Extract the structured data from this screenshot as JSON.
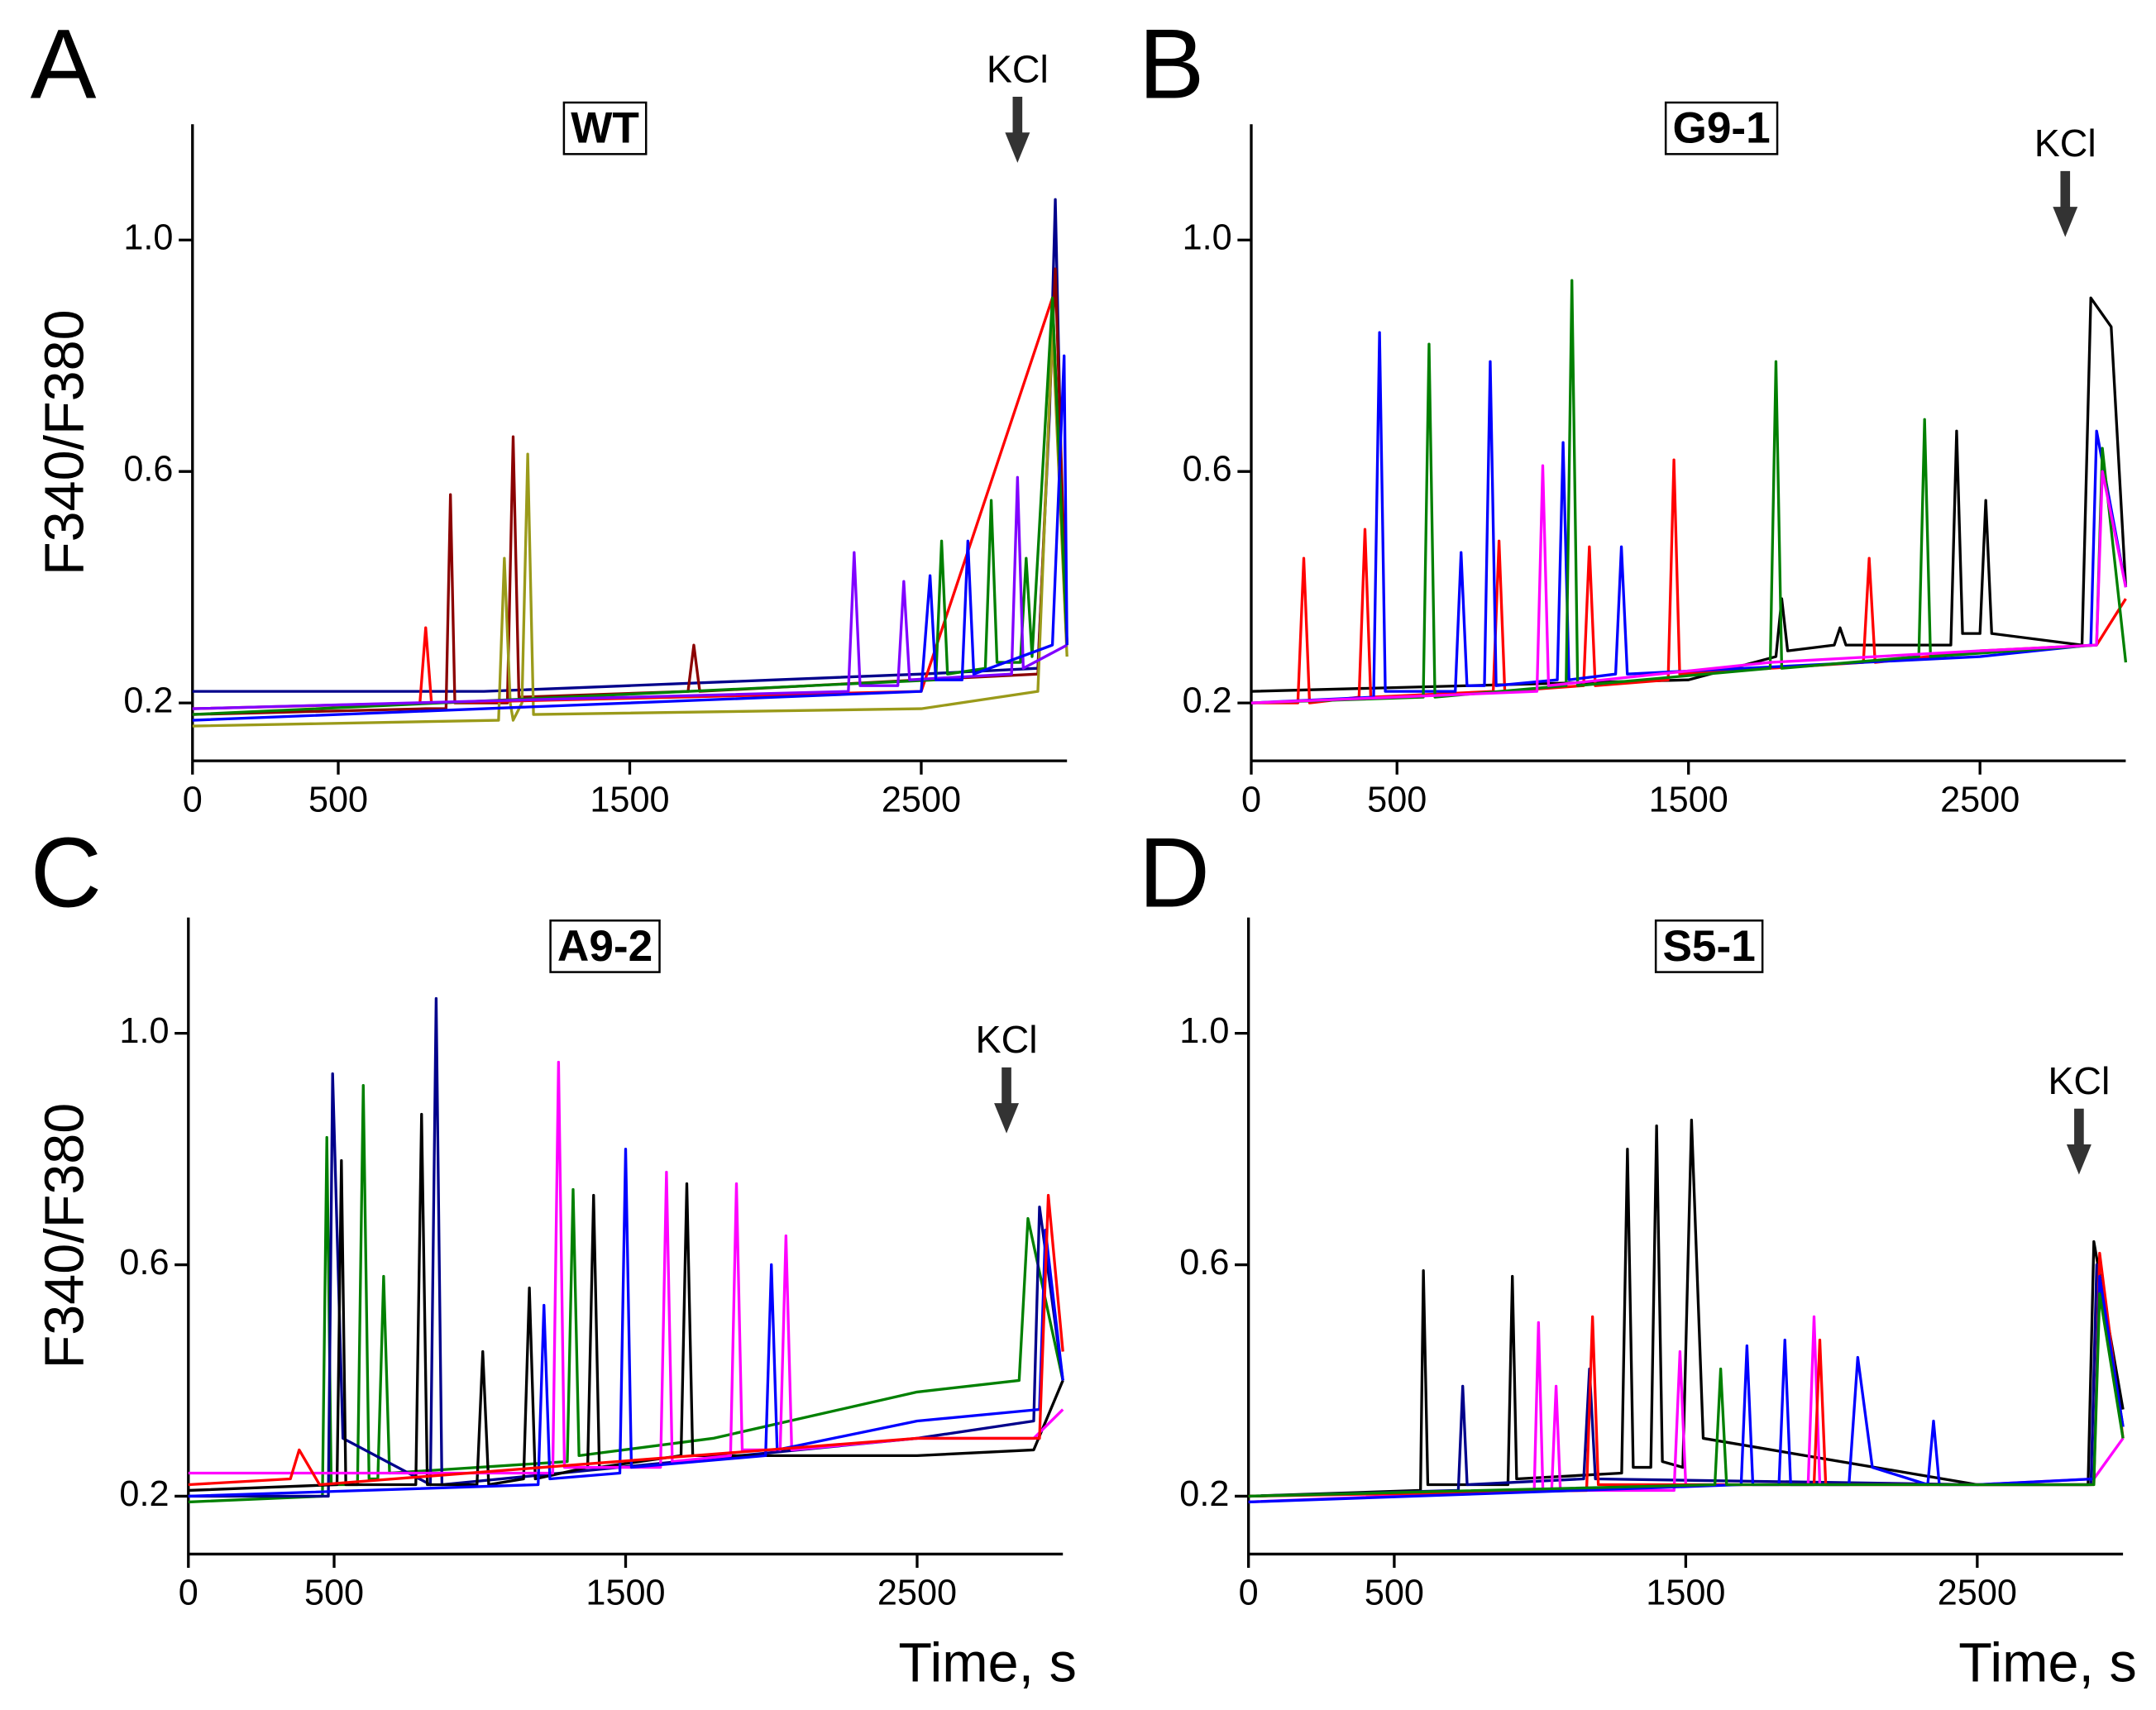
{
  "chart_data": [
    {
      "type": "line",
      "panel_label": "A",
      "title": "WT",
      "ylabel": "F340/F380",
      "annotation": "KCl",
      "xlim": [
        0,
        3000
      ],
      "ylim": [
        0.1,
        1.2
      ],
      "xticks": [
        0,
        500,
        1500,
        2500
      ],
      "yticks": [
        0.2,
        0.6,
        {
          "value": 1,
          "label": "1.0"
        }
      ],
      "series": [
        {
          "color": "#00008b",
          "x": [
            0,
            500,
            1000,
            1500,
            2000,
            2500,
            2900,
            2940,
            2960,
            2980,
            3000
          ],
          "values": [
            0.22,
            0.22,
            0.22,
            0.23,
            0.24,
            0.25,
            0.26,
            0.7,
            1.07,
            0.6,
            0.3
          ]
        },
        {
          "color": "#8b0000",
          "x": [
            0,
            800,
            870,
            885,
            900,
            1080,
            1100,
            1120,
            1700,
            1720,
            1740,
            2500,
            2900,
            2960,
            3000
          ],
          "values": [
            0.18,
            0.19,
            0.19,
            0.56,
            0.2,
            0.2,
            0.66,
            0.21,
            0.22,
            0.3,
            0.22,
            0.24,
            0.25,
            0.95,
            0.3
          ]
        },
        {
          "color": "#9a9a1a",
          "x": [
            0,
            1050,
            1070,
            1090,
            1100,
            1130,
            1150,
            1170,
            2500,
            2900,
            2950,
            3000
          ],
          "values": [
            0.16,
            0.17,
            0.45,
            0.2,
            0.17,
            0.2,
            0.63,
            0.18,
            0.19,
            0.22,
            0.85,
            0.28
          ]
        },
        {
          "color": "#ff0000",
          "x": [
            0,
            780,
            800,
            820,
            2500,
            2950,
            3000
          ],
          "values": [
            0.19,
            0.2,
            0.33,
            0.2,
            0.22,
            0.9,
            0.3
          ]
        },
        {
          "color": "#008000",
          "x": [
            0,
            2550,
            2570,
            2590,
            2720,
            2740,
            2760,
            2840,
            2860,
            2880,
            2950,
            3000
          ],
          "values": [
            0.18,
            0.24,
            0.48,
            0.25,
            0.26,
            0.55,
            0.27,
            0.27,
            0.45,
            0.28,
            0.9,
            0.3
          ]
        },
        {
          "color": "#8000ff",
          "x": [
            0,
            2250,
            2270,
            2290,
            2420,
            2440,
            2460,
            2810,
            2830,
            2850,
            3000
          ],
          "values": [
            0.19,
            0.22,
            0.46,
            0.23,
            0.23,
            0.41,
            0.24,
            0.25,
            0.59,
            0.26,
            0.3
          ]
        },
        {
          "color": "#0000ff",
          "x": [
            0,
            2500,
            2530,
            2550,
            2640,
            2660,
            2680,
            2950,
            2990,
            3000
          ],
          "values": [
            0.17,
            0.22,
            0.42,
            0.24,
            0.24,
            0.48,
            0.25,
            0.3,
            0.8,
            0.3
          ]
        }
      ]
    },
    {
      "type": "line",
      "panel_label": "B",
      "title": "G9-1",
      "annotation": "KCl",
      "xlim": [
        0,
        3000
      ],
      "ylim": [
        0.1,
        1.2
      ],
      "xticks": [
        0,
        500,
        1500,
        2500
      ],
      "yticks": [
        0.2,
        0.6,
        {
          "value": 1,
          "label": "1.0"
        }
      ],
      "series": [
        {
          "color": "#000000",
          "x": [
            0,
            1500,
            1800,
            1820,
            1840,
            2000,
            2020,
            2040,
            2400,
            2420,
            2440,
            2500,
            2520,
            2540,
            2850,
            2880,
            2950,
            3000
          ],
          "values": [
            0.22,
            0.24,
            0.28,
            0.38,
            0.29,
            0.3,
            0.33,
            0.3,
            0.3,
            0.67,
            0.32,
            0.32,
            0.55,
            0.32,
            0.3,
            0.9,
            0.85,
            0.4
          ]
        },
        {
          "color": "#ff0000",
          "x": [
            0,
            160,
            180,
            200,
            370,
            390,
            410,
            830,
            850,
            870,
            1140,
            1160,
            1180,
            1430,
            1450,
            1470,
            2100,
            2120,
            2140,
            2500,
            2900,
            3000
          ],
          "values": [
            0.2,
            0.2,
            0.45,
            0.2,
            0.21,
            0.5,
            0.21,
            0.22,
            0.48,
            0.22,
            0.23,
            0.47,
            0.23,
            0.24,
            0.62,
            0.25,
            0.27,
            0.45,
            0.27,
            0.29,
            0.3,
            0.38
          ]
        },
        {
          "color": "#0000ff",
          "x": [
            0,
            420,
            440,
            460,
            700,
            720,
            740,
            800,
            820,
            840,
            1050,
            1070,
            1090,
            1250,
            1270,
            1290,
            2500,
            2880,
            2900,
            3000
          ],
          "values": [
            0.2,
            0.21,
            0.84,
            0.22,
            0.22,
            0.46,
            0.23,
            0.23,
            0.79,
            0.23,
            0.24,
            0.65,
            0.24,
            0.25,
            0.47,
            0.25,
            0.28,
            0.3,
            0.67,
            0.4
          ]
        },
        {
          "color": "#008000",
          "x": [
            0,
            590,
            610,
            630,
            1080,
            1100,
            1120,
            1780,
            1800,
            1820,
            2290,
            2310,
            2330,
            2900,
            2920,
            3000
          ],
          "values": [
            0.2,
            0.21,
            0.82,
            0.21,
            0.23,
            0.93,
            0.23,
            0.26,
            0.79,
            0.26,
            0.28,
            0.69,
            0.28,
            0.3,
            0.64,
            0.27
          ]
        },
        {
          "color": "#ff00ff",
          "x": [
            0,
            980,
            1000,
            1020,
            1780,
            2500,
            2900,
            2920,
            3000
          ],
          "values": [
            0.2,
            0.22,
            0.61,
            0.23,
            0.27,
            0.29,
            0.3,
            0.6,
            0.4
          ]
        }
      ]
    },
    {
      "type": "line",
      "panel_label": "C",
      "title": "A9-2",
      "ylabel": "F340/F380",
      "xlabel": "Time, s",
      "annotation": "KCl",
      "xlim": [
        0,
        3000
      ],
      "ylim": [
        0.1,
        1.2
      ],
      "xticks": [
        0,
        500,
        1500,
        2500
      ],
      "yticks": [
        0.2,
        0.6,
        {
          "value": 1,
          "label": "1.0"
        }
      ],
      "series": [
        {
          "color": "#008000",
          "x": [
            0,
            460,
            475,
            490,
            580,
            600,
            620,
            650,
            670,
            690,
            1300,
            1320,
            1340,
            1800,
            2500,
            2850,
            2880,
            3000
          ],
          "values": [
            0.19,
            0.2,
            0.82,
            0.22,
            0.22,
            0.91,
            0.23,
            0.23,
            0.58,
            0.24,
            0.26,
            0.73,
            0.27,
            0.3,
            0.38,
            0.4,
            0.68,
            0.4
          ]
        },
        {
          "color": "#00008b",
          "x": [
            0,
            480,
            495,
            530,
            830,
            850,
            870,
            2500,
            2900,
            2920,
            3000
          ],
          "values": [
            0.2,
            0.2,
            0.93,
            0.3,
            0.22,
            1.06,
            0.22,
            0.3,
            0.33,
            0.7,
            0.4
          ]
        },
        {
          "color": "#000000",
          "x": [
            0,
            510,
            525,
            540,
            780,
            800,
            820,
            990,
            1010,
            1030,
            1150,
            1170,
            1190,
            1370,
            1390,
            1410,
            1690,
            1710,
            1730,
            2500,
            2900,
            3000
          ],
          "values": [
            0.21,
            0.22,
            0.78,
            0.22,
            0.22,
            0.86,
            0.22,
            0.22,
            0.45,
            0.22,
            0.23,
            0.56,
            0.23,
            0.25,
            0.72,
            0.25,
            0.27,
            0.74,
            0.27,
            0.27,
            0.28,
            0.4
          ]
        },
        {
          "color": "#ff00ff",
          "x": [
            0,
            1250,
            1270,
            1290,
            1620,
            1640,
            1660,
            1860,
            1880,
            1900,
            2030,
            2050,
            2070,
            2500,
            2900,
            3000
          ],
          "values": [
            0.24,
            0.24,
            0.95,
            0.25,
            0.25,
            0.76,
            0.26,
            0.27,
            0.74,
            0.28,
            0.28,
            0.65,
            0.28,
            0.3,
            0.3,
            0.35
          ]
        },
        {
          "color": "#0000ff",
          "x": [
            0,
            1200,
            1220,
            1240,
            1480,
            1500,
            1520,
            1980,
            2000,
            2020,
            2500,
            2920,
            2940,
            3000
          ],
          "values": [
            0.2,
            0.22,
            0.53,
            0.23,
            0.24,
            0.8,
            0.25,
            0.27,
            0.6,
            0.28,
            0.33,
            0.35,
            0.66,
            0.4
          ]
        },
        {
          "color": "#ff0000",
          "x": [
            0,
            350,
            380,
            450,
            2500,
            2920,
            2950,
            3000
          ],
          "values": [
            0.22,
            0.23,
            0.28,
            0.22,
            0.3,
            0.3,
            0.72,
            0.45
          ]
        }
      ]
    },
    {
      "type": "line",
      "panel_label": "D",
      "title": "S5-1",
      "xlabel": "Time, s",
      "annotation": "KCl",
      "xlim": [
        0,
        3000
      ],
      "ylim": [
        0.1,
        1.2
      ],
      "xticks": [
        0,
        500,
        1500,
        2500
      ],
      "yticks": [
        0.2,
        0.6,
        {
          "value": 1,
          "label": "1.0"
        }
      ],
      "series": [
        {
          "color": "#000000",
          "x": [
            0,
            590,
            600,
            615,
            890,
            905,
            920,
            1280,
            1300,
            1320,
            1380,
            1400,
            1420,
            1490,
            1520,
            1560,
            2500,
            2880,
            2900,
            3000
          ],
          "values": [
            0.2,
            0.21,
            0.59,
            0.22,
            0.22,
            0.58,
            0.23,
            0.24,
            0.8,
            0.25,
            0.25,
            0.84,
            0.26,
            0.25,
            0.85,
            0.3,
            0.22,
            0.22,
            0.64,
            0.35
          ]
        },
        {
          "color": "#00008b",
          "x": [
            0,
            720,
            735,
            750,
            1150,
            1170,
            1190,
            2500,
            2890,
            2910,
            3000
          ],
          "values": [
            0.2,
            0.21,
            0.39,
            0.22,
            0.23,
            0.42,
            0.23,
            0.22,
            0.22,
            0.6,
            0.32
          ]
        },
        {
          "color": "#ff00ff",
          "x": [
            0,
            980,
            995,
            1010,
            1040,
            1055,
            1070,
            1460,
            1480,
            1500,
            1920,
            1940,
            1960,
            2500,
            2900,
            3000
          ],
          "values": [
            0.19,
            0.21,
            0.5,
            0.21,
            0.21,
            0.39,
            0.21,
            0.21,
            0.45,
            0.22,
            0.22,
            0.51,
            0.22,
            0.22,
            0.23,
            0.3
          ]
        },
        {
          "color": "#ff0000",
          "x": [
            0,
            1160,
            1180,
            1200,
            1940,
            1960,
            1980,
            2500,
            2900,
            2920,
            3000
          ],
          "values": [
            0.2,
            0.21,
            0.51,
            0.22,
            0.22,
            0.47,
            0.22,
            0.22,
            0.22,
            0.62,
            0.3
          ]
        },
        {
          "color": "#0000ff",
          "x": [
            0,
            1690,
            1710,
            1730,
            1820,
            1840,
            1860,
            2060,
            2090,
            2140,
            2330,
            2350,
            2370,
            2500,
            2900,
            2920,
            3000
          ],
          "values": [
            0.19,
            0.22,
            0.46,
            0.22,
            0.22,
            0.47,
            0.22,
            0.22,
            0.44,
            0.25,
            0.22,
            0.33,
            0.22,
            0.22,
            0.23,
            0.58,
            0.32
          ]
        },
        {
          "color": "#008000",
          "x": [
            0,
            1600,
            1620,
            1640,
            2500,
            2900,
            2920,
            3000
          ],
          "values": [
            0.2,
            0.22,
            0.42,
            0.22,
            0.22,
            0.22,
            0.55,
            0.3
          ]
        }
      ]
    }
  ]
}
